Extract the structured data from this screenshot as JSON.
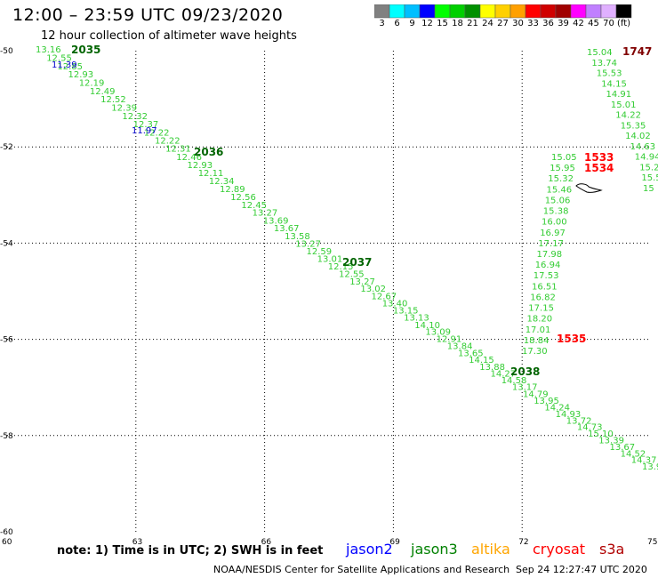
{
  "header": {
    "title": "12:00 – 23:59 UTC 09/23/2020",
    "subtitle": "12 hour collection of altimeter wave heights"
  },
  "colorbar": {
    "colors": [
      "#808080",
      "#00ffff",
      "#00bfff",
      "#0000ff",
      "#00ff00",
      "#00d000",
      "#009000",
      "#ffff00",
      "#ffd000",
      "#ffa000",
      "#ff0000",
      "#d00000",
      "#a00000",
      "#ff00ff",
      "#c080ff",
      "#e0b0ff",
      "#000000"
    ],
    "labels": [
      "3",
      "6",
      "9",
      "12",
      "15",
      "18",
      "21",
      "24",
      "27",
      "30",
      "33",
      "36",
      "39",
      "42",
      "45",
      "70",
      "(ft)"
    ]
  },
  "axes": {
    "lon_range": [
      60,
      75
    ],
    "lat_range": [
      -60,
      -50
    ],
    "x_ticks": [
      "60",
      "63",
      "66",
      "69",
      "72",
      "75"
    ],
    "y_ticks": [
      "-50",
      "-52",
      "-54",
      "-56",
      "-58",
      "-60"
    ],
    "grid": "dotted"
  },
  "tracks": [
    {
      "pass": "2035",
      "pass_color": "#006400",
      "value_color": "#33cc33",
      "values": [
        "13.16",
        "12.55",
        "12.85",
        "12.93",
        "12.19",
        "12.49",
        "12.52",
        "12.39",
        "12.32",
        "12.37",
        "12.22",
        "12.22",
        "12.31",
        "12.46",
        "12.93",
        "12.11",
        "12.34",
        "12.89",
        "12.56",
        "12.45",
        "13.27",
        "13.69",
        "13.67",
        "13.58",
        "13.27",
        "12.59",
        "13.01",
        "12.15",
        "12.55",
        "13.27",
        "13.02",
        "12.67",
        "13.40",
        "13.15",
        "13.13",
        "14.10",
        "13.09",
        "12.91",
        "13.84",
        "13.65",
        "14.15",
        "13.88",
        "14.27",
        "14.58",
        "13.17",
        "14.79",
        "13.95",
        "14.24",
        "14.93",
        "13.72",
        "14.73",
        "15.10",
        "13.39",
        "13.67",
        "14.52",
        "14.37",
        "13.9"
      ]
    },
    {
      "pass": "1747",
      "pass_color": "#800000",
      "value_color": "#33cc33",
      "values": [
        "15.04",
        "13.74",
        "15.53",
        "14.15",
        "14.91",
        "15.01",
        "14.22",
        "15.35",
        "14.02",
        "14.63",
        "14.94",
        "15.2",
        "15.5",
        "15"
      ]
    },
    {
      "pass": "1533",
      "pass_color": "#ff0000",
      "value_color": "#33cc33",
      "values": [
        "15.05",
        "15.95",
        "15.32",
        "15.46",
        "15.06",
        "15.38",
        "16.00",
        "16.97",
        "17.17",
        "17.98",
        "16.94",
        "17.53",
        "16.51",
        "16.82",
        "17.15",
        "18.20",
        "17.01",
        "18.84",
        "17.30"
      ]
    }
  ],
  "jason2_values": [
    "11.39",
    "11.97"
  ],
  "pass_labels": {
    "p2036": "2036",
    "p2037": "2037",
    "p2038": "2038",
    "p1534": "1534",
    "p1535": "1535"
  },
  "footer": {
    "note": "note:  1) Time is in UTC;  2) SWH is in feet",
    "satellites": [
      {
        "name": "jason2",
        "color": "#0000ff"
      },
      {
        "name": "jason3",
        "color": "#008000"
      },
      {
        "name": "altika",
        "color": "#ffa500"
      },
      {
        "name": "cryosat",
        "color": "#ff0000"
      },
      {
        "name": "s3a",
        "color": "#b00000"
      }
    ],
    "credit": "NOAA/NESDIS Center for Satellite Applications and Research",
    "timestamp": "Sep 24 12:27:47 UTC 2020"
  }
}
